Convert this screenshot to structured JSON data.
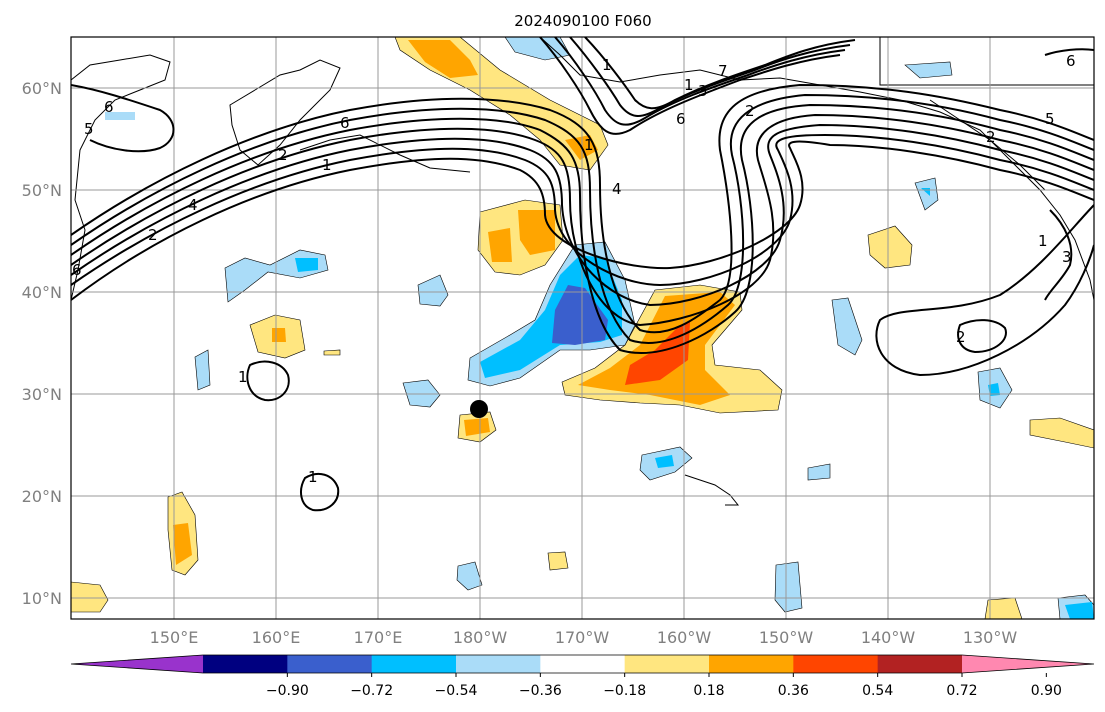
{
  "title": "2024090100 F060",
  "lat_labels": [
    "60°N",
    "50°N",
    "40°N",
    "30°N",
    "20°N",
    "10°N"
  ],
  "lon_labels": [
    "150°E",
    "160°E",
    "170°E",
    "180°W",
    "170°W",
    "160°W",
    "150°W",
    "140°W",
    "130°W"
  ],
  "contour_labels": [
    "6",
    "5",
    "6",
    "2",
    "1",
    "4",
    "2",
    "6",
    "1",
    "7",
    "3",
    "1",
    "2",
    "6",
    "5",
    "2",
    "1",
    "3",
    "2",
    "1",
    "1",
    "4",
    "1",
    "6"
  ],
  "colorbar": {
    "tick_labels": [
      "−0.90",
      "−0.72",
      "−0.54",
      "−0.36",
      "−0.18",
      "0.18",
      "0.36",
      "0.54",
      "0.72",
      "0.90"
    ],
    "colors": [
      "#9933cc",
      "#000080",
      "#3a5fcd",
      "#00bfff",
      "#aadcf8",
      "#ffffff",
      "#ffe680",
      "#ffa500",
      "#ff4500",
      "#b22222",
      "#ff88b0"
    ]
  },
  "colors": {
    "pos1": "#ffe680",
    "pos2": "#ffa500",
    "pos3": "#ff4500",
    "neg1": "#aadcf8",
    "neg2": "#00bfff",
    "neg3": "#3a5fcd",
    "grid": "#999999",
    "label": "#808080"
  },
  "marker": "black-dot"
}
